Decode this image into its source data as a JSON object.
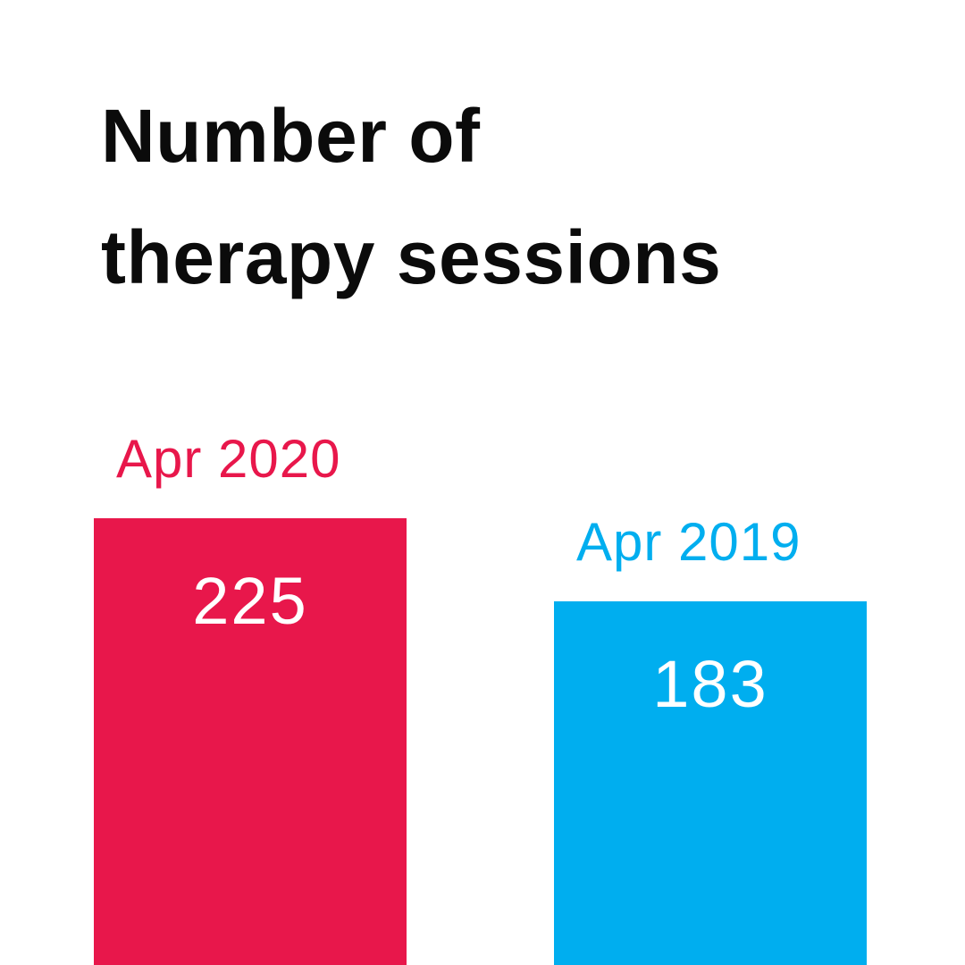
{
  "title_lines": [
    "Number of",
    "therapy sessions"
  ],
  "chart_data": {
    "type": "bar",
    "title": "Number of therapy sessions",
    "categories": [
      "Apr 2020",
      "Apr 2019"
    ],
    "values": [
      225,
      183
    ],
    "bar_colors": [
      "#e8174b",
      "#00aeef"
    ],
    "value_label_color": "#ffffff",
    "title_color": "#0b0b0b",
    "layout": {
      "orientation": "vertical",
      "bars_anchored_to_bottom_edge": true,
      "category_labels_above_bars": true,
      "value_labels_inside_bar_top": true,
      "grid": false,
      "axes_shown": false,
      "legend": false,
      "background": "#ffffff"
    }
  }
}
